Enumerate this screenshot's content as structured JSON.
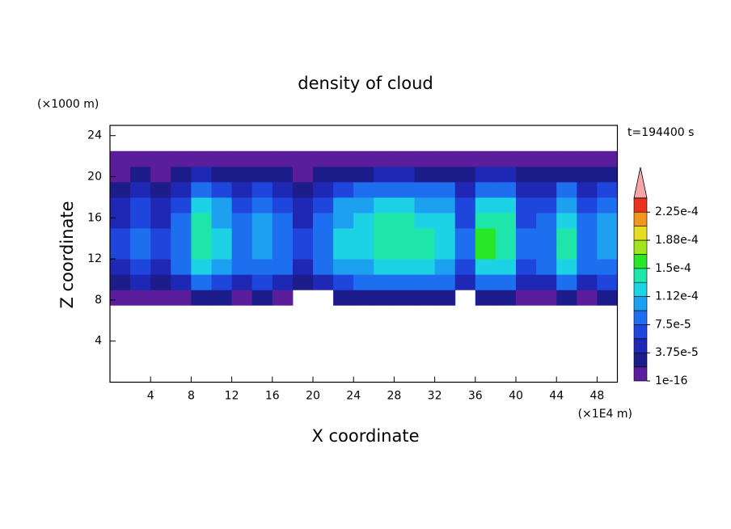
{
  "chart_data": {
    "type": "heatmap",
    "title": "density of cloud",
    "x_label": "X coordinate",
    "y_label": "Z coordinate",
    "x_unit": "(×1E4 m)",
    "y_unit": "(×1000 m)",
    "annotation": "t=194400 s",
    "xlim": [
      0,
      50
    ],
    "ylim": [
      0,
      25
    ],
    "xticks": [
      4,
      8,
      12,
      16,
      20,
      24,
      28,
      32,
      36,
      40,
      44,
      48
    ],
    "yticks": [
      4,
      8,
      12,
      16,
      20,
      24
    ],
    "x": [
      1,
      3,
      5,
      7,
      9,
      11,
      13,
      15,
      17,
      19,
      21,
      23,
      25,
      27,
      29,
      31,
      33,
      35,
      37,
      39,
      41,
      43,
      45,
      47,
      49
    ],
    "y": [
      8.25,
      9.75,
      11.25,
      12.75,
      14.25,
      15.75,
      17.25,
      18.75,
      20.25,
      21.75
    ],
    "values": [
      [
        1.2e-05,
        1.5e-05,
        1.2e-05,
        1.8e-05,
        2.85e-05,
        2.4e-05,
        1.8e-05,
        2.1e-05,
        1.8e-05,
        null,
        null,
        2.4e-05,
        2.55e-05,
        2.85e-05,
        2.85e-05,
        2.7e-05,
        2.55e-05,
        null,
        3e-05,
        2.85e-05,
        1.5e-05,
        1.8e-05,
        2.7e-05,
        1.8e-05,
        2.1e-05
      ],
      [
        3.6e-05,
        4.5e-05,
        3.6e-05,
        5.4e-05,
        8.6e-05,
        7.2e-05,
        5.4e-05,
        6.3e-05,
        5.4e-05,
        3.6e-05,
        5.4e-05,
        7.2e-05,
        7.7e-05,
        8.6e-05,
        8.6e-05,
        8.1e-05,
        7.7e-05,
        4.5e-05,
        9e-05,
        8.6e-05,
        4.5e-05,
        5.4e-05,
        8.1e-05,
        5.4e-05,
        6.3e-05
      ],
      [
        5.2e-05,
        6.5e-05,
        5.2e-05,
        7.8e-05,
        0.000124,
        0.000104,
        7.8e-05,
        9.1e-05,
        7.8e-05,
        5.2e-05,
        7.8e-05,
        0.000104,
        0.000111,
        0.000124,
        0.000124,
        0.000117,
        0.000111,
        6.5e-05,
        0.00013,
        0.000124,
        6.5e-05,
        7.8e-05,
        0.000117,
        7.8e-05,
        9.1e-05
      ],
      [
        6e-05,
        7.5e-05,
        6e-05,
        9e-05,
        0.000143,
        0.00012,
        9e-05,
        0.000105,
        9e-05,
        6e-05,
        9e-05,
        0.00012,
        0.000128,
        0.000143,
        0.000143,
        0.000135,
        0.000128,
        7.5e-05,
        0.00015,
        0.000143,
        7.5e-05,
        9e-05,
        0.000135,
        9e-05,
        0.000105
      ],
      [
        6e-05,
        7.5e-05,
        6e-05,
        9e-05,
        0.000143,
        0.00012,
        9e-05,
        0.000105,
        9e-05,
        6e-05,
        9e-05,
        0.00012,
        0.000128,
        0.000143,
        0.000143,
        0.000135,
        0.000128,
        7.5e-05,
        0.00015,
        0.000143,
        7.5e-05,
        9e-05,
        0.000135,
        9e-05,
        0.000105
      ],
      [
        5.6e-05,
        7e-05,
        5.6e-05,
        8.4e-05,
        0.000133,
        0.000112,
        8.4e-05,
        9.8e-05,
        8.4e-05,
        5.6e-05,
        8.4e-05,
        0.000112,
        0.000119,
        0.000133,
        0.000133,
        0.000126,
        0.000119,
        7e-05,
        0.00014,
        0.000133,
        7e-05,
        8.4e-05,
        0.000126,
        8.4e-05,
        9.8e-05
      ],
      [
        4.8e-05,
        6e-05,
        4.8e-05,
        7.2e-05,
        0.000114,
        9.6e-05,
        7.2e-05,
        8.4e-05,
        7.2e-05,
        4.8e-05,
        7.2e-05,
        9.6e-05,
        0.000102,
        0.000114,
        0.000114,
        0.000108,
        0.000102,
        6e-05,
        0.00012,
        0.000114,
        6e-05,
        7.2e-05,
        0.000108,
        7.2e-05,
        8.4e-05
      ],
      [
        3.6e-05,
        4.5e-05,
        3.6e-05,
        5.4e-05,
        8.6e-05,
        7.2e-05,
        5.4e-05,
        6.3e-05,
        5.4e-05,
        3.6e-05,
        5.4e-05,
        7.2e-05,
        7.7e-05,
        8.6e-05,
        8.6e-05,
        8.1e-05,
        7.7e-05,
        4.5e-05,
        9e-05,
        8.6e-05,
        4.5e-05,
        5.4e-05,
        8.1e-05,
        5.4e-05,
        6.3e-05
      ],
      [
        1.6e-05,
        2e-05,
        1.6e-05,
        2.4e-05,
        3.8e-05,
        3.2e-05,
        2.4e-05,
        2.8e-05,
        2.4e-05,
        1.6e-05,
        2.4e-05,
        3.2e-05,
        3.4e-05,
        3.8e-05,
        3.8e-05,
        3.6e-05,
        3.4e-05,
        2e-05,
        4e-05,
        3.8e-05,
        2e-05,
        2.4e-05,
        3.6e-05,
        2.4e-05,
        2.8e-05
      ],
      [
        4e-06,
        5e-06,
        4e-06,
        6e-06,
        1e-05,
        8e-06,
        6e-06,
        7e-06,
        6e-06,
        4e-06,
        6e-06,
        8e-06,
        9e-06,
        1e-05,
        1e-05,
        9e-06,
        9e-06,
        5e-06,
        1e-05,
        1e-05,
        5e-06,
        6e-06,
        9e-06,
        6e-06,
        7e-06
      ]
    ],
    "colorbar": {
      "levels": [
        1e-16,
        1.875e-05,
        3.75e-05,
        5.625e-05,
        7.5e-05,
        9.375e-05,
        0.0001125,
        0.00013125,
        0.00015,
        0.00016875,
        0.0001875,
        0.00020625,
        0.000225,
        0.00024375
      ],
      "colors": [
        "#5a1e9c",
        "#1c1c8a",
        "#1e28b4",
        "#1e46dc",
        "#1e6ef0",
        "#1ea0f0",
        "#1ed2e6",
        "#1ee6aa",
        "#28e628",
        "#a0e61e",
        "#e6dc1e",
        "#f0961e",
        "#e6321e"
      ],
      "extend_color": "#f4a6a6",
      "ticks": [
        {
          "value": 1e-16,
          "label": "1e-16"
        },
        {
          "value": 3.75e-05,
          "label": "3.75e-5"
        },
        {
          "value": 7.5e-05,
          "label": "7.5e-5"
        },
        {
          "value": 0.0001125,
          "label": "1.12e-4"
        },
        {
          "value": 0.00015,
          "label": "1.5e-4"
        },
        {
          "value": 0.0001875,
          "label": "1.88e-4"
        },
        {
          "value": 0.000225,
          "label": "2.25e-4"
        }
      ]
    }
  }
}
